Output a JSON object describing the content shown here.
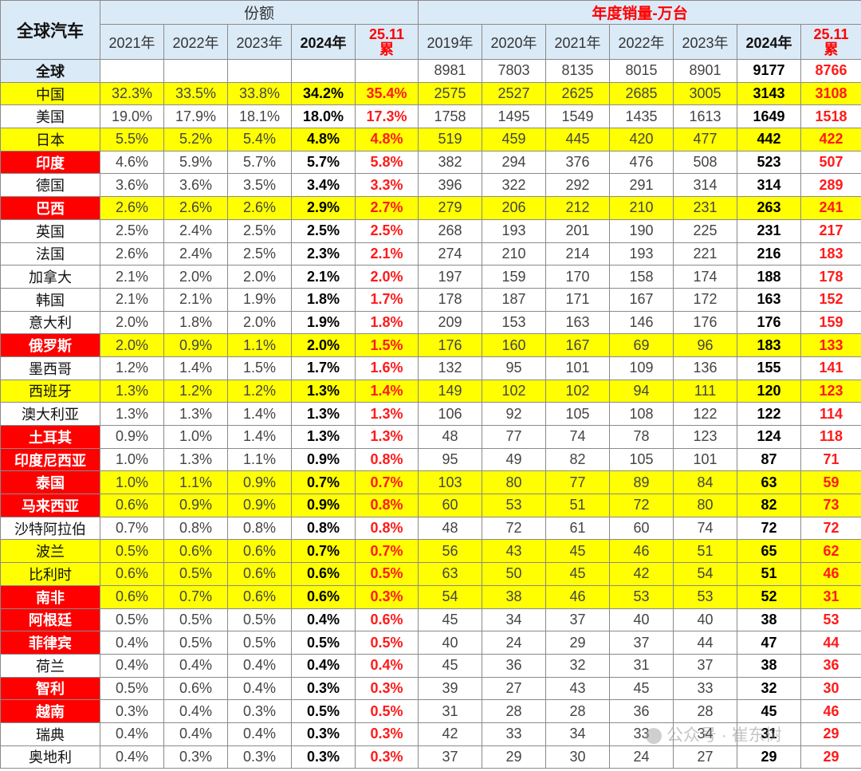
{
  "header": {
    "corner": "全球汽车",
    "share_group": "份额",
    "sales_group": "年度销量-万台",
    "share_years": [
      "2021年",
      "2022年",
      "2023年",
      "2024年",
      "25.11\n累"
    ],
    "sales_years": [
      "2019年",
      "2020年",
      "2021年",
      "2022年",
      "2023年",
      "2024年",
      "25.11\n累"
    ]
  },
  "world": {
    "label": "全球",
    "sales": [
      "8981",
      "7803",
      "8135",
      "8015",
      "8901",
      "9177",
      "8766"
    ]
  },
  "rows": [
    {
      "country": "中国",
      "yellow": true,
      "red_label": false,
      "share": [
        "32.3%",
        "33.5%",
        "33.8%",
        "34.2%",
        "35.4%"
      ],
      "sales": [
        "2575",
        "2527",
        "2625",
        "2685",
        "3005",
        "3143",
        "3108"
      ]
    },
    {
      "country": "美国",
      "yellow": false,
      "red_label": false,
      "share": [
        "19.0%",
        "17.9%",
        "18.1%",
        "18.0%",
        "17.3%"
      ],
      "sales": [
        "1758",
        "1495",
        "1549",
        "1435",
        "1613",
        "1649",
        "1518"
      ]
    },
    {
      "country": "日本",
      "yellow": true,
      "red_label": false,
      "share": [
        "5.5%",
        "5.2%",
        "5.4%",
        "4.8%",
        "4.8%"
      ],
      "sales": [
        "519",
        "459",
        "445",
        "420",
        "477",
        "442",
        "422"
      ]
    },
    {
      "country": "印度",
      "yellow": false,
      "red_label": true,
      "share": [
        "4.6%",
        "5.9%",
        "5.7%",
        "5.7%",
        "5.8%"
      ],
      "sales": [
        "382",
        "294",
        "376",
        "476",
        "508",
        "523",
        "507"
      ]
    },
    {
      "country": "德国",
      "yellow": false,
      "red_label": false,
      "share": [
        "3.6%",
        "3.6%",
        "3.5%",
        "3.4%",
        "3.3%"
      ],
      "sales": [
        "396",
        "322",
        "292",
        "291",
        "314",
        "314",
        "289"
      ]
    },
    {
      "country": "巴西",
      "yellow": true,
      "red_label": true,
      "share": [
        "2.6%",
        "2.6%",
        "2.6%",
        "2.9%",
        "2.7%"
      ],
      "sales": [
        "279",
        "206",
        "212",
        "210",
        "231",
        "263",
        "241"
      ]
    },
    {
      "country": "英国",
      "yellow": false,
      "red_label": false,
      "share": [
        "2.5%",
        "2.4%",
        "2.5%",
        "2.5%",
        "2.5%"
      ],
      "sales": [
        "268",
        "193",
        "201",
        "190",
        "225",
        "231",
        "217"
      ]
    },
    {
      "country": "法国",
      "yellow": false,
      "red_label": false,
      "share": [
        "2.6%",
        "2.4%",
        "2.5%",
        "2.3%",
        "2.1%"
      ],
      "sales": [
        "274",
        "210",
        "214",
        "193",
        "221",
        "216",
        "183"
      ]
    },
    {
      "country": "加拿大",
      "yellow": false,
      "red_label": false,
      "share": [
        "2.1%",
        "2.0%",
        "2.0%",
        "2.1%",
        "2.0%"
      ],
      "sales": [
        "197",
        "159",
        "170",
        "158",
        "174",
        "188",
        "178"
      ]
    },
    {
      "country": "韩国",
      "yellow": false,
      "red_label": false,
      "share": [
        "2.1%",
        "2.1%",
        "1.9%",
        "1.8%",
        "1.7%"
      ],
      "sales": [
        "178",
        "187",
        "171",
        "167",
        "172",
        "163",
        "152"
      ]
    },
    {
      "country": "意大利",
      "yellow": false,
      "red_label": false,
      "share": [
        "2.0%",
        "1.8%",
        "2.0%",
        "1.9%",
        "1.8%"
      ],
      "sales": [
        "209",
        "153",
        "163",
        "146",
        "176",
        "176",
        "159"
      ]
    },
    {
      "country": "俄罗斯",
      "yellow": true,
      "red_label": true,
      "share": [
        "2.0%",
        "0.9%",
        "1.1%",
        "2.0%",
        "1.5%"
      ],
      "sales": [
        "176",
        "160",
        "167",
        "69",
        "96",
        "183",
        "133"
      ]
    },
    {
      "country": "墨西哥",
      "yellow": false,
      "red_label": false,
      "share": [
        "1.2%",
        "1.4%",
        "1.5%",
        "1.7%",
        "1.6%"
      ],
      "sales": [
        "132",
        "95",
        "101",
        "109",
        "136",
        "155",
        "141"
      ]
    },
    {
      "country": "西班牙",
      "yellow": true,
      "red_label": false,
      "share": [
        "1.3%",
        "1.2%",
        "1.2%",
        "1.3%",
        "1.4%"
      ],
      "sales": [
        "149",
        "102",
        "102",
        "94",
        "111",
        "120",
        "123"
      ]
    },
    {
      "country": "澳大利亚",
      "yellow": false,
      "red_label": false,
      "share": [
        "1.3%",
        "1.3%",
        "1.4%",
        "1.3%",
        "1.3%"
      ],
      "sales": [
        "106",
        "92",
        "105",
        "108",
        "122",
        "122",
        "114"
      ]
    },
    {
      "country": "土耳其",
      "yellow": false,
      "red_label": true,
      "share": [
        "0.9%",
        "1.0%",
        "1.4%",
        "1.3%",
        "1.3%"
      ],
      "sales": [
        "48",
        "77",
        "74",
        "78",
        "123",
        "124",
        "118"
      ]
    },
    {
      "country": "印度尼西亚",
      "yellow": false,
      "red_label": true,
      "share": [
        "1.0%",
        "1.3%",
        "1.1%",
        "0.9%",
        "0.8%"
      ],
      "sales": [
        "95",
        "49",
        "82",
        "105",
        "101",
        "87",
        "71"
      ]
    },
    {
      "country": "泰国",
      "yellow": true,
      "red_label": true,
      "share": [
        "1.0%",
        "1.1%",
        "0.9%",
        "0.7%",
        "0.7%"
      ],
      "sales": [
        "103",
        "80",
        "77",
        "89",
        "84",
        "63",
        "59"
      ]
    },
    {
      "country": "马来西亚",
      "yellow": true,
      "red_label": true,
      "share": [
        "0.6%",
        "0.9%",
        "0.9%",
        "0.9%",
        "0.8%"
      ],
      "sales": [
        "60",
        "53",
        "51",
        "72",
        "80",
        "82",
        "73"
      ]
    },
    {
      "country": "沙特阿拉伯",
      "yellow": false,
      "red_label": false,
      "share": [
        "0.7%",
        "0.8%",
        "0.8%",
        "0.8%",
        "0.8%"
      ],
      "sales": [
        "48",
        "72",
        "61",
        "60",
        "74",
        "72",
        "72"
      ]
    },
    {
      "country": "波兰",
      "yellow": true,
      "red_label": false,
      "share": [
        "0.5%",
        "0.6%",
        "0.6%",
        "0.7%",
        "0.7%"
      ],
      "sales": [
        "56",
        "43",
        "45",
        "46",
        "51",
        "65",
        "62"
      ]
    },
    {
      "country": "比利时",
      "yellow": true,
      "red_label": false,
      "share": [
        "0.6%",
        "0.5%",
        "0.6%",
        "0.6%",
        "0.5%"
      ],
      "sales": [
        "63",
        "50",
        "45",
        "42",
        "54",
        "51",
        "46"
      ]
    },
    {
      "country": "南非",
      "yellow": true,
      "red_label": true,
      "share": [
        "0.6%",
        "0.7%",
        "0.6%",
        "0.6%",
        "0.3%"
      ],
      "sales": [
        "54",
        "38",
        "46",
        "53",
        "53",
        "52",
        "31"
      ]
    },
    {
      "country": "阿根廷",
      "yellow": false,
      "red_label": true,
      "share": [
        "0.5%",
        "0.5%",
        "0.5%",
        "0.4%",
        "0.6%"
      ],
      "sales": [
        "45",
        "34",
        "37",
        "40",
        "40",
        "38",
        "53"
      ]
    },
    {
      "country": "菲律宾",
      "yellow": false,
      "red_label": true,
      "share": [
        "0.4%",
        "0.5%",
        "0.5%",
        "0.5%",
        "0.5%"
      ],
      "sales": [
        "40",
        "24",
        "29",
        "37",
        "44",
        "47",
        "44"
      ]
    },
    {
      "country": "荷兰",
      "yellow": false,
      "red_label": false,
      "share": [
        "0.4%",
        "0.4%",
        "0.4%",
        "0.4%",
        "0.4%"
      ],
      "sales": [
        "45",
        "36",
        "32",
        "31",
        "37",
        "38",
        "36"
      ]
    },
    {
      "country": "智利",
      "yellow": false,
      "red_label": true,
      "share": [
        "0.5%",
        "0.6%",
        "0.4%",
        "0.3%",
        "0.3%"
      ],
      "sales": [
        "39",
        "27",
        "43",
        "45",
        "33",
        "32",
        "30"
      ]
    },
    {
      "country": "越南",
      "yellow": false,
      "red_label": true,
      "share": [
        "0.3%",
        "0.4%",
        "0.3%",
        "0.5%",
        "0.5%"
      ],
      "sales": [
        "31",
        "28",
        "28",
        "36",
        "28",
        "45",
        "46"
      ]
    },
    {
      "country": "瑞典",
      "yellow": false,
      "red_label": false,
      "share": [
        "0.4%",
        "0.4%",
        "0.4%",
        "0.3%",
        "0.3%"
      ],
      "sales": [
        "42",
        "33",
        "34",
        "33",
        "34",
        "31",
        "29"
      ]
    },
    {
      "country": "奥地利",
      "yellow": false,
      "red_label": false,
      "share": [
        "0.4%",
        "0.3%",
        "0.3%",
        "0.3%",
        "0.3%"
      ],
      "sales": [
        "37",
        "29",
        "30",
        "24",
        "27",
        "29",
        "29"
      ]
    }
  ],
  "watermark": {
    "icon": "wechat-icon",
    "text": "公众号 · 崔东树"
  }
}
